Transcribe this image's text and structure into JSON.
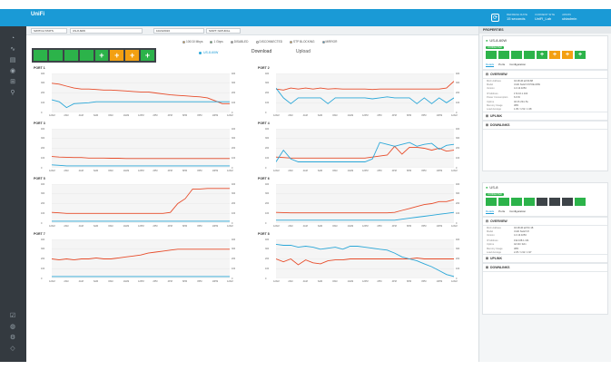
{
  "app": {
    "logo": "UniFi"
  },
  "topbar": {
    "refresh_icon": "refresh-icon",
    "refresh_label": "REFRESH RATE",
    "refresh_value": "15 seconds",
    "site_label": "CURRENT SITE",
    "site_value": "UniFi_Lab",
    "admin_label": "ADMIN",
    "admin_value": "ubiadmin"
  },
  "nav": {
    "icons": [
      "dashboard-icon",
      "map-icon",
      "devices-icon",
      "clients-icon",
      "statistics-icon",
      "insights-icon",
      "alerts-icon",
      "events-icon",
      "settings-icon",
      "chat-icon"
    ]
  },
  "filter": {
    "switch_stats": "SWITCH STATS",
    "device": "US-8-60W",
    "date": "10/24/2016",
    "sort": "SORT: NATURAL"
  },
  "legend": {
    "items": [
      {
        "label": "100/10 Mbps",
        "color": "#f3a012"
      },
      {
        "label": "1 Gbps",
        "color": "#2cb34a"
      },
      {
        "label": "DISABLED",
        "color": "#999999"
      },
      {
        "label": "DISCONNECTED",
        "color": "#ffffff"
      },
      {
        "label": "STP BLOCKING",
        "color": "#f3a012"
      },
      {
        "label": "MIRROR",
        "color": "#1a9ad6"
      }
    ]
  },
  "device_tag": "US-8-60W",
  "tabs": {
    "download": "Download",
    "upload": "Upload"
  },
  "ports_panel": {
    "ports": [
      {
        "state": "green"
      },
      {
        "state": "green"
      },
      {
        "state": "green"
      },
      {
        "state": "green"
      },
      {
        "state": "green-plus"
      },
      {
        "state": "orange-plus"
      },
      {
        "state": "orange-plus"
      },
      {
        "state": "green-plus"
      }
    ]
  },
  "colors": {
    "accent": "#1a9ad6",
    "download": "#e74c2a",
    "upload": "#2aa7d8",
    "green": "#2cb34a",
    "orange": "#f3a012"
  },
  "charts": [
    {
      "title": "PORT 1"
    },
    {
      "title": "PORT 2"
    },
    {
      "title": "PORT 3"
    },
    {
      "title": "PORT 4"
    },
    {
      "title": "PORT 5"
    },
    {
      "title": "PORT 6"
    },
    {
      "title": "PORT 7"
    },
    {
      "title": "PORT 8"
    }
  ],
  "x_ticks": [
    "12AM",
    "2AM",
    "4AM",
    "6AM",
    "8AM",
    "10AM",
    "12PM",
    "2PM",
    "4PM",
    "6PM",
    "8PM",
    "10PM",
    "12AM"
  ],
  "chart_data": [
    {
      "type": "line",
      "title": "PORT 1",
      "ylim": [
        0,
        400
      ],
      "series": [
        {
          "color": "#e74c2a",
          "values": [
            300,
            290,
            270,
            250,
            240,
            240,
            235,
            230,
            230,
            225,
            220,
            215,
            210,
            210,
            200,
            190,
            180,
            175,
            170,
            165,
            160,
            150,
            120,
            90,
            90
          ]
        },
        {
          "color": "#2aa7d8",
          "values": [
            130,
            110,
            50,
            90,
            95,
            100,
            110,
            110,
            110,
            110,
            110,
            110,
            110,
            110,
            110,
            110,
            110,
            110,
            110,
            110,
            110,
            110,
            110,
            110,
            110
          ]
        }
      ]
    },
    {
      "type": "line",
      "title": "PORT 2",
      "ylim": [
        0,
        400
      ],
      "series": [
        {
          "color": "#e74c2a",
          "values": [
            240,
            230,
            250,
            240,
            250,
            240,
            250,
            240,
            245,
            240,
            240,
            240,
            240,
            235,
            240,
            240,
            240,
            240,
            240,
            240,
            240,
            240,
            240,
            250,
            320
          ]
        },
        {
          "color": "#2aa7d8",
          "values": [
            250,
            150,
            90,
            150,
            150,
            150,
            150,
            90,
            150,
            150,
            150,
            150,
            150,
            140,
            150,
            160,
            150,
            150,
            150,
            90,
            150,
            90,
            150,
            100,
            150
          ]
        }
      ]
    },
    {
      "type": "line",
      "title": "PORT 3",
      "ylim": [
        0,
        400
      ],
      "series": [
        {
          "color": "#e74c2a",
          "values": [
            115,
            110,
            108,
            105,
            105,
            100,
            100,
            100,
            98,
            98,
            95,
            95,
            95,
            95,
            95,
            95,
            95,
            95,
            95,
            95,
            95,
            95,
            95,
            95,
            95
          ]
        },
        {
          "color": "#2aa7d8",
          "values": [
            30,
            25,
            20,
            20,
            20,
            20,
            20,
            20,
            20,
            20,
            20,
            20,
            20,
            20,
            20,
            20,
            20,
            20,
            20,
            20,
            20,
            20,
            20,
            20,
            20
          ]
        }
      ]
    },
    {
      "type": "line",
      "title": "PORT 4",
      "ylim": [
        0,
        400
      ],
      "series": [
        {
          "color": "#e74c2a",
          "values": [
            110,
            105,
            100,
            100,
            100,
            100,
            100,
            100,
            100,
            100,
            100,
            100,
            100,
            110,
            120,
            130,
            220,
            140,
            210,
            210,
            200,
            180,
            200,
            170,
            180
          ]
        },
        {
          "color": "#2aa7d8",
          "values": [
            60,
            180,
            90,
            60,
            60,
            60,
            60,
            60,
            60,
            60,
            60,
            60,
            60,
            90,
            260,
            240,
            220,
            240,
            260,
            220,
            240,
            250,
            190,
            230,
            240
          ]
        }
      ]
    },
    {
      "type": "line",
      "title": "PORT 5",
      "ylim": [
        0,
        400
      ],
      "series": [
        {
          "color": "#e74c2a",
          "values": [
            110,
            105,
            100,
            100,
            100,
            100,
            100,
            100,
            100,
            100,
            100,
            100,
            100,
            100,
            100,
            100,
            110,
            200,
            250,
            350,
            350,
            355,
            355,
            355,
            355
          ]
        },
        {
          "color": "#2aa7d8",
          "values": [
            20,
            20,
            20,
            20,
            20,
            20,
            20,
            20,
            20,
            20,
            20,
            20,
            20,
            20,
            20,
            20,
            20,
            20,
            20,
            20,
            20,
            20,
            20,
            20,
            20
          ]
        }
      ]
    },
    {
      "type": "line",
      "title": "PORT 6",
      "ylim": [
        0,
        400
      ],
      "series": [
        {
          "color": "#e74c2a",
          "values": [
            110,
            108,
            105,
            105,
            105,
            105,
            105,
            105,
            105,
            105,
            105,
            105,
            105,
            105,
            105,
            105,
            110,
            130,
            150,
            170,
            190,
            200,
            220,
            220,
            240
          ]
        },
        {
          "color": "#2aa7d8",
          "values": [
            30,
            30,
            30,
            30,
            30,
            30,
            30,
            30,
            30,
            30,
            30,
            30,
            30,
            30,
            30,
            30,
            30,
            40,
            50,
            60,
            70,
            80,
            90,
            100,
            110
          ]
        }
      ]
    },
    {
      "type": "line",
      "title": "PORT 7",
      "ylim": [
        0,
        400
      ],
      "series": [
        {
          "color": "#e74c2a",
          "values": [
            200,
            190,
            200,
            190,
            200,
            200,
            210,
            200,
            200,
            210,
            220,
            230,
            240,
            260,
            270,
            280,
            290,
            300,
            300,
            300,
            300,
            300,
            300,
            300,
            300
          ]
        },
        {
          "color": "#2aa7d8",
          "values": [
            20,
            20,
            20,
            20,
            20,
            20,
            20,
            20,
            20,
            20,
            20,
            20,
            20,
            20,
            20,
            20,
            20,
            20,
            20,
            20,
            20,
            20,
            20,
            20,
            20
          ]
        }
      ]
    },
    {
      "type": "line",
      "title": "PORT 8",
      "ylim": [
        0,
        400
      ],
      "series": [
        {
          "color": "#e74c2a",
          "values": [
            200,
            170,
            200,
            140,
            190,
            160,
            150,
            180,
            190,
            190,
            200,
            200,
            200,
            200,
            200,
            200,
            200,
            200,
            200,
            210,
            200,
            200,
            200,
            200,
            200
          ]
        },
        {
          "color": "#2aa7d8",
          "values": [
            350,
            340,
            340,
            320,
            330,
            320,
            300,
            310,
            320,
            300,
            330,
            330,
            320,
            310,
            300,
            290,
            260,
            220,
            200,
            180,
            150,
            120,
            80,
            40,
            20
          ]
        }
      ]
    }
  ],
  "properties": {
    "title": "PROPERTIES",
    "card1": {
      "name": "US-8-60W",
      "badge": "CONNECTED",
      "ports": [
        "green",
        "green",
        "green",
        "green",
        "green-plus",
        "orange-plus",
        "orange-plus",
        "green-plus"
      ],
      "tabs": [
        "Details",
        "Ports",
        "Configuration"
      ],
      "overview": "OVERVIEW",
      "rows": [
        {
          "k": "MAC Address",
          "v": "04:18:d6:a0:9b:88"
        },
        {
          "k": "Model",
          "v": "UniFi Switch 8 POE-60W"
        },
        {
          "k": "Version",
          "v": "4.3.13.3253"
        },
        {
          "k": "IP Address",
          "v": "172.16.1.104"
        },
        {
          "k": "Power Consumption",
          "v": "6.9 W"
        },
        {
          "k": "Uptime",
          "v": "3d 4h 23m 5s"
        },
        {
          "k": "Memory Usage",
          "v": "38%"
        },
        {
          "k": "Load Average",
          "v": "1.95 / 1.52 / 1.38"
        }
      ],
      "uplink": "UPLINK",
      "downlinks": "DOWNLINKS"
    },
    "card2": {
      "name": "US-8",
      "badge": "CONNECTED",
      "ports": [
        "green",
        "green",
        "green",
        "green",
        "dark",
        "dark",
        "dark",
        "green"
      ],
      "tabs": [
        "Details",
        "Ports",
        "Configuration"
      ],
      "overview": "OVERVIEW",
      "rows": [
        {
          "k": "MAC Address",
          "v": "04:18:d6:a0:5C:18"
        },
        {
          "k": "Model",
          "v": "UniFi Switch 8"
        },
        {
          "k": "Version",
          "v": "4.3.13.3253"
        },
        {
          "k": "IP Address",
          "v": "192.168.1.101"
        },
        {
          "k": "Uptime",
          "v": "4d 21h 32m"
        },
        {
          "k": "Memory Usage",
          "v": "38%"
        },
        {
          "k": "Load Average",
          "v": "2.25 / 1.92 / 1.97"
        }
      ],
      "uplink": "UPLINK",
      "downlinks": "DOWNLINKS"
    }
  }
}
